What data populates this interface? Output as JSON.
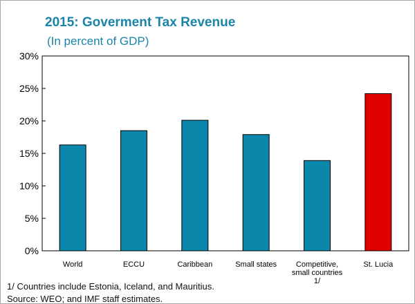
{
  "chart_data": {
    "type": "bar",
    "title": "2015: Goverment Tax Revenue",
    "subtitle": "(In percent of GDP)",
    "categories": [
      "World",
      "ECCU",
      "Caribbean",
      "Small states",
      "Competitive, small countries 1/",
      "St. Lucia"
    ],
    "category_lines": [
      [
        "World"
      ],
      [
        "ECCU"
      ],
      [
        "Caribbean"
      ],
      [
        "Small states"
      ],
      [
        "Competitive,",
        "small countries",
        "1/"
      ],
      [
        "St. Lucia"
      ]
    ],
    "values": [
      16.3,
      18.5,
      20.1,
      17.9,
      13.9,
      24.2
    ],
    "colors": [
      "#0a87aa",
      "#0a87aa",
      "#0a87aa",
      "#0a87aa",
      "#0a87aa",
      "#e00000"
    ],
    "ylim": [
      0,
      30
    ],
    "yticks": [
      0,
      5,
      10,
      15,
      20,
      25,
      30
    ],
    "ytick_labels": [
      "0%",
      "5%",
      "10%",
      "15%",
      "20%",
      "25%",
      "30%"
    ],
    "grid": false,
    "footnotes": [
      "1/ Countries include Estonia, Iceland, and Mauritius.",
      "Source: WEO; and IMF staff estimates."
    ]
  }
}
